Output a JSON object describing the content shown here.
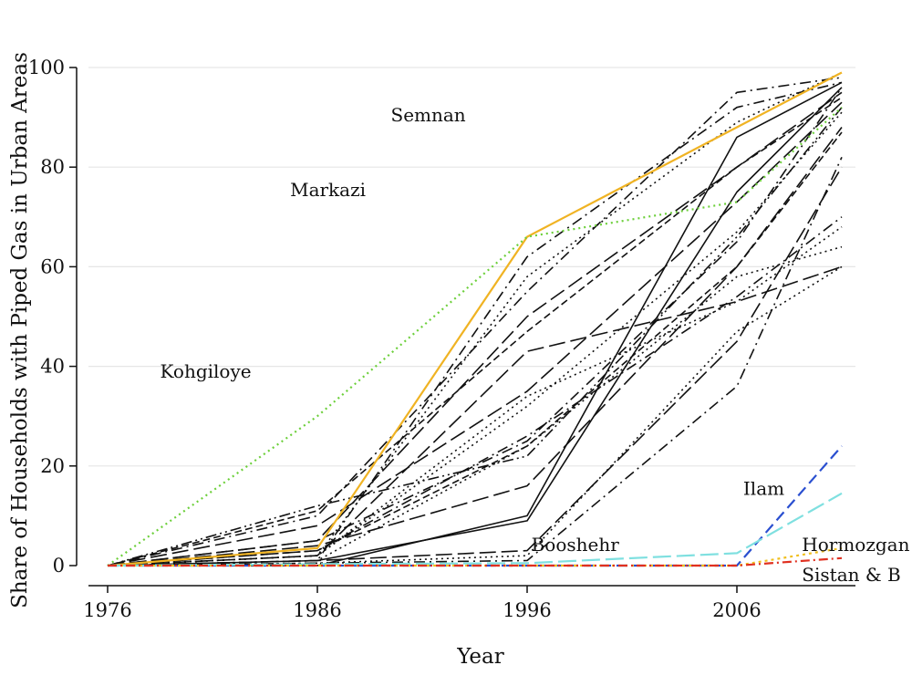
{
  "chart_data": {
    "type": "line",
    "title": "",
    "xlabel": "Year",
    "ylabel": "Share of Households with Piped Gas in Urban Areas",
    "xlim": [
      1976,
      2011
    ],
    "ylim": [
      0,
      100
    ],
    "x_ticks": [
      1976,
      1986,
      1996,
      2006
    ],
    "y_ticks": [
      0,
      20,
      40,
      60,
      80,
      100
    ],
    "grid": "horizontal",
    "legend": "none",
    "highlighted_series": [
      {
        "name": "Semnan",
        "color": "#f0b323",
        "dash": "solid",
        "width": 2.2,
        "x": [
          1976,
          1986,
          1996,
          2006,
          2011
        ],
        "y": [
          0,
          3.5,
          66,
          88,
          99
        ]
      },
      {
        "name": "Kohgiloye",
        "color": "#6ccf3a",
        "dash": "2,4",
        "width": 2.2,
        "x": [
          1976,
          1986,
          1996,
          2006,
          2011
        ],
        "y": [
          0,
          30,
          66,
          73,
          92
        ]
      },
      {
        "name": "Ilam",
        "color": "#2a4fd0",
        "dash": "12,6",
        "width": 2.2,
        "x": [
          1976,
          1986,
          1996,
          2006,
          2011
        ],
        "y": [
          0,
          0,
          0,
          0,
          24
        ]
      },
      {
        "name": "Booshehr",
        "color": "#7fe0e0",
        "dash": "20,6",
        "width": 2.2,
        "x": [
          1976,
          1986,
          1996,
          2006,
          2011
        ],
        "y": [
          0,
          0.3,
          0.5,
          2.5,
          14.5
        ]
      },
      {
        "name": "Hormozgan",
        "color": "#f0c020",
        "dash": "3,4",
        "width": 2.2,
        "x": [
          1976,
          1986,
          1996,
          2006,
          2011
        ],
        "y": [
          0,
          0,
          0,
          0,
          3.5
        ]
      },
      {
        "name": "Sistan & B",
        "color": "#e03020",
        "dash": "10,4,2,4",
        "width": 2.2,
        "x": [
          1976,
          1986,
          1996,
          2006,
          2011
        ],
        "y": [
          0,
          0,
          0,
          0,
          1.5
        ]
      }
    ],
    "other_series": [
      {
        "dash": "none",
        "x": [
          1976,
          1986,
          1996,
          2006,
          2011
        ],
        "y": [
          0,
          0,
          10,
          86,
          97
        ]
      },
      {
        "dash": "none",
        "x": [
          1976,
          1986,
          1996,
          2006,
          2011
        ],
        "y": [
          0,
          1,
          9,
          75,
          96
        ]
      },
      {
        "dash": "18,6",
        "x": [
          1976,
          1986,
          1996,
          2006,
          2011
        ],
        "y": [
          0,
          2,
          43,
          53,
          60
        ]
      },
      {
        "dash": "18,6",
        "x": [
          1976,
          1986,
          1996,
          2006,
          2011
        ],
        "y": [
          0,
          5,
          50,
          80,
          95
        ]
      },
      {
        "dash": "18,6",
        "x": [
          1976,
          1986,
          1996,
          2006,
          2011
        ],
        "y": [
          0,
          8,
          35,
          73,
          93
        ]
      },
      {
        "dash": "18,6",
        "x": [
          1976,
          1986,
          1996,
          2006,
          2011
        ],
        "y": [
          0,
          4,
          16,
          60,
          88
        ]
      },
      {
        "dash": "18,6",
        "x": [
          1976,
          1986,
          1996,
          2006,
          2011
        ],
        "y": [
          0,
          1,
          3,
          45,
          80
        ]
      },
      {
        "dash": "12,5,2,5",
        "x": [
          1976,
          1986,
          1996,
          2006,
          2011
        ],
        "y": [
          0,
          3,
          26,
          54,
          70
        ]
      },
      {
        "dash": "12,5,2,5",
        "x": [
          1976,
          1986,
          1996,
          2006,
          2011
        ],
        "y": [
          0,
          0.5,
          1,
          36,
          82
        ]
      },
      {
        "dash": "12,5,2,5",
        "x": [
          1976,
          1986,
          1996,
          2006,
          2011
        ],
        "y": [
          0,
          10,
          55,
          95,
          98
        ]
      },
      {
        "dash": "12,5,2,5",
        "x": [
          1976,
          1986,
          1996,
          2006,
          2011
        ],
        "y": [
          0,
          1,
          62,
          92,
          97
        ]
      },
      {
        "dash": "12,5,2,5",
        "x": [
          1976,
          1986,
          1996,
          2006,
          2011
        ],
        "y": [
          0,
          5,
          25,
          65,
          96
        ]
      },
      {
        "dash": "2,4",
        "x": [
          1976,
          1986,
          1996,
          2006,
          2011
        ],
        "y": [
          0,
          2,
          34,
          53,
          68
        ]
      },
      {
        "dash": "2,4",
        "x": [
          1976,
          1986,
          1996,
          2006,
          2011
        ],
        "y": [
          0,
          2,
          58,
          89,
          99
        ]
      },
      {
        "dash": "2,4",
        "x": [
          1976,
          1986,
          1996,
          2006,
          2011
        ],
        "y": [
          0,
          1,
          24,
          58,
          64
        ]
      },
      {
        "dash": "2,4",
        "x": [
          1976,
          1986,
          1996,
          2006,
          2011
        ],
        "y": [
          0,
          0.5,
          2,
          47,
          60
        ]
      },
      {
        "dash": "2,4",
        "x": [
          1976,
          1986,
          1996,
          2006,
          2011
        ],
        "y": [
          0,
          2,
          32,
          67,
          91
        ]
      },
      {
        "dash": "8,4",
        "x": [
          1976,
          1986,
          1996,
          2006,
          2011
        ],
        "y": [
          0,
          11,
          47,
          80,
          94
        ]
      },
      {
        "dash": "8,4",
        "x": [
          1976,
          1986,
          1996,
          2006,
          2011
        ],
        "y": [
          0,
          3,
          24,
          60,
          87
        ]
      },
      {
        "dash": "12,4,2,4,2,4",
        "x": [
          1976,
          1986,
          1996,
          2006,
          2011
        ],
        "y": [
          0,
          12,
          22,
          66,
          92
        ]
      }
    ],
    "annotations": [
      {
        "text": "Semnan",
        "x": 1989.5,
        "y": 90.5
      },
      {
        "text": "Markazi",
        "x": 1984.7,
        "y": 75.5
      },
      {
        "text": "Kohgiloye",
        "x": 1978.5,
        "y": 39
      },
      {
        "text": "Ilam",
        "x": 2006.3,
        "y": 15.5
      },
      {
        "text": "Booshehr",
        "x": 1996.2,
        "y": 4.2
      },
      {
        "text": "Hormozgan",
        "x": 2009.1,
        "y": 4.2
      },
      {
        "text": "Sistan & B",
        "x": 2009.1,
        "y": -1.8
      }
    ]
  }
}
